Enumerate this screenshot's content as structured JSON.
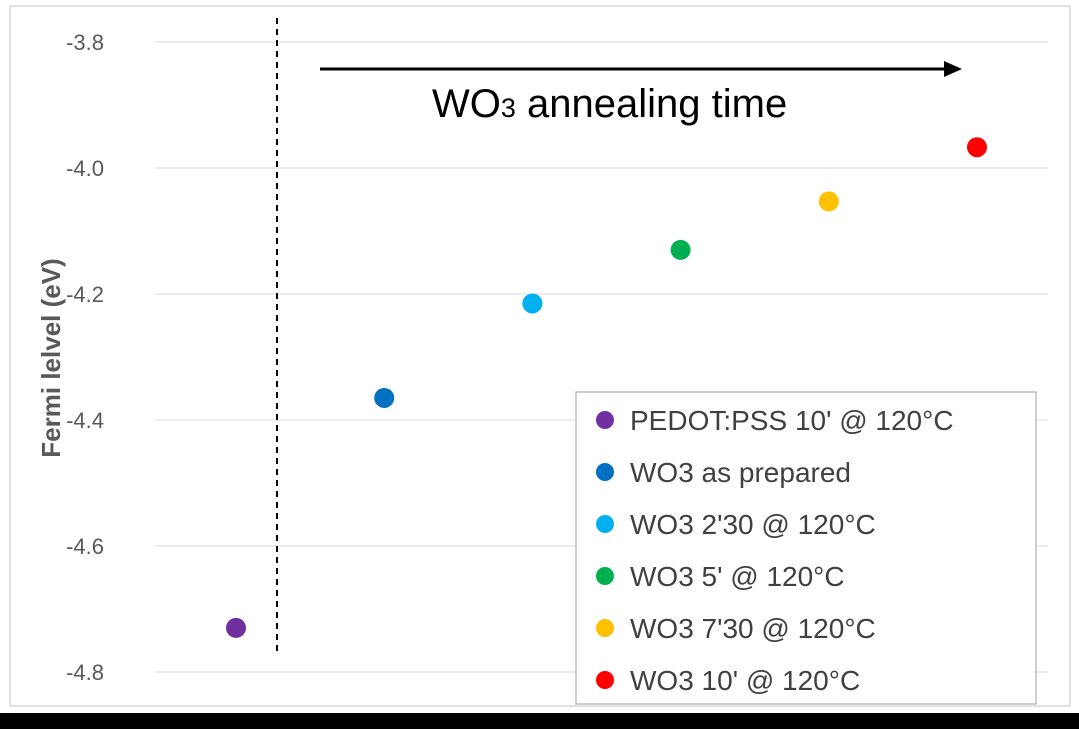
{
  "chart_data": {
    "type": "scatter",
    "ylabel": "Fermi lelvel (eV)",
    "ylim": [
      -4.8,
      -3.8
    ],
    "yticks": [
      -3.8,
      -4.0,
      -4.2,
      -4.4,
      -4.6,
      -4.8
    ],
    "ytick_labels": [
      "-3.8",
      "-4.0",
      "-4.2",
      "-4.4",
      "-4.6",
      "-4.8"
    ],
    "grid": true,
    "legend_position": "bottom-right",
    "annotation": {
      "text_main": "WO",
      "text_sub": "3",
      "text_rest": " annealing time",
      "arrow_direction": "right"
    },
    "separator_line": "dashed-vertical",
    "series": [
      {
        "name": "PEDOT:PSS 10' @ 120°C",
        "index": 0,
        "y": -4.73,
        "color": "#7030A0"
      },
      {
        "name": "WO3 as prepared",
        "index": 1,
        "y": -4.365,
        "color": "#0070C0"
      },
      {
        "name": "WO3 2'30 @ 120°C",
        "index": 2,
        "y": -4.215,
        "color": "#00B0F0"
      },
      {
        "name": "WO3 5' @ 120°C",
        "index": 3,
        "y": -4.13,
        "color": "#00B050"
      },
      {
        "name": "WO3 7'30 @ 120°C",
        "index": 4,
        "y": -4.053,
        "color": "#FFC000"
      },
      {
        "name": "WO3 10' @ 120°C",
        "index": 5,
        "y": -3.967,
        "color": "#FF0000"
      }
    ]
  }
}
